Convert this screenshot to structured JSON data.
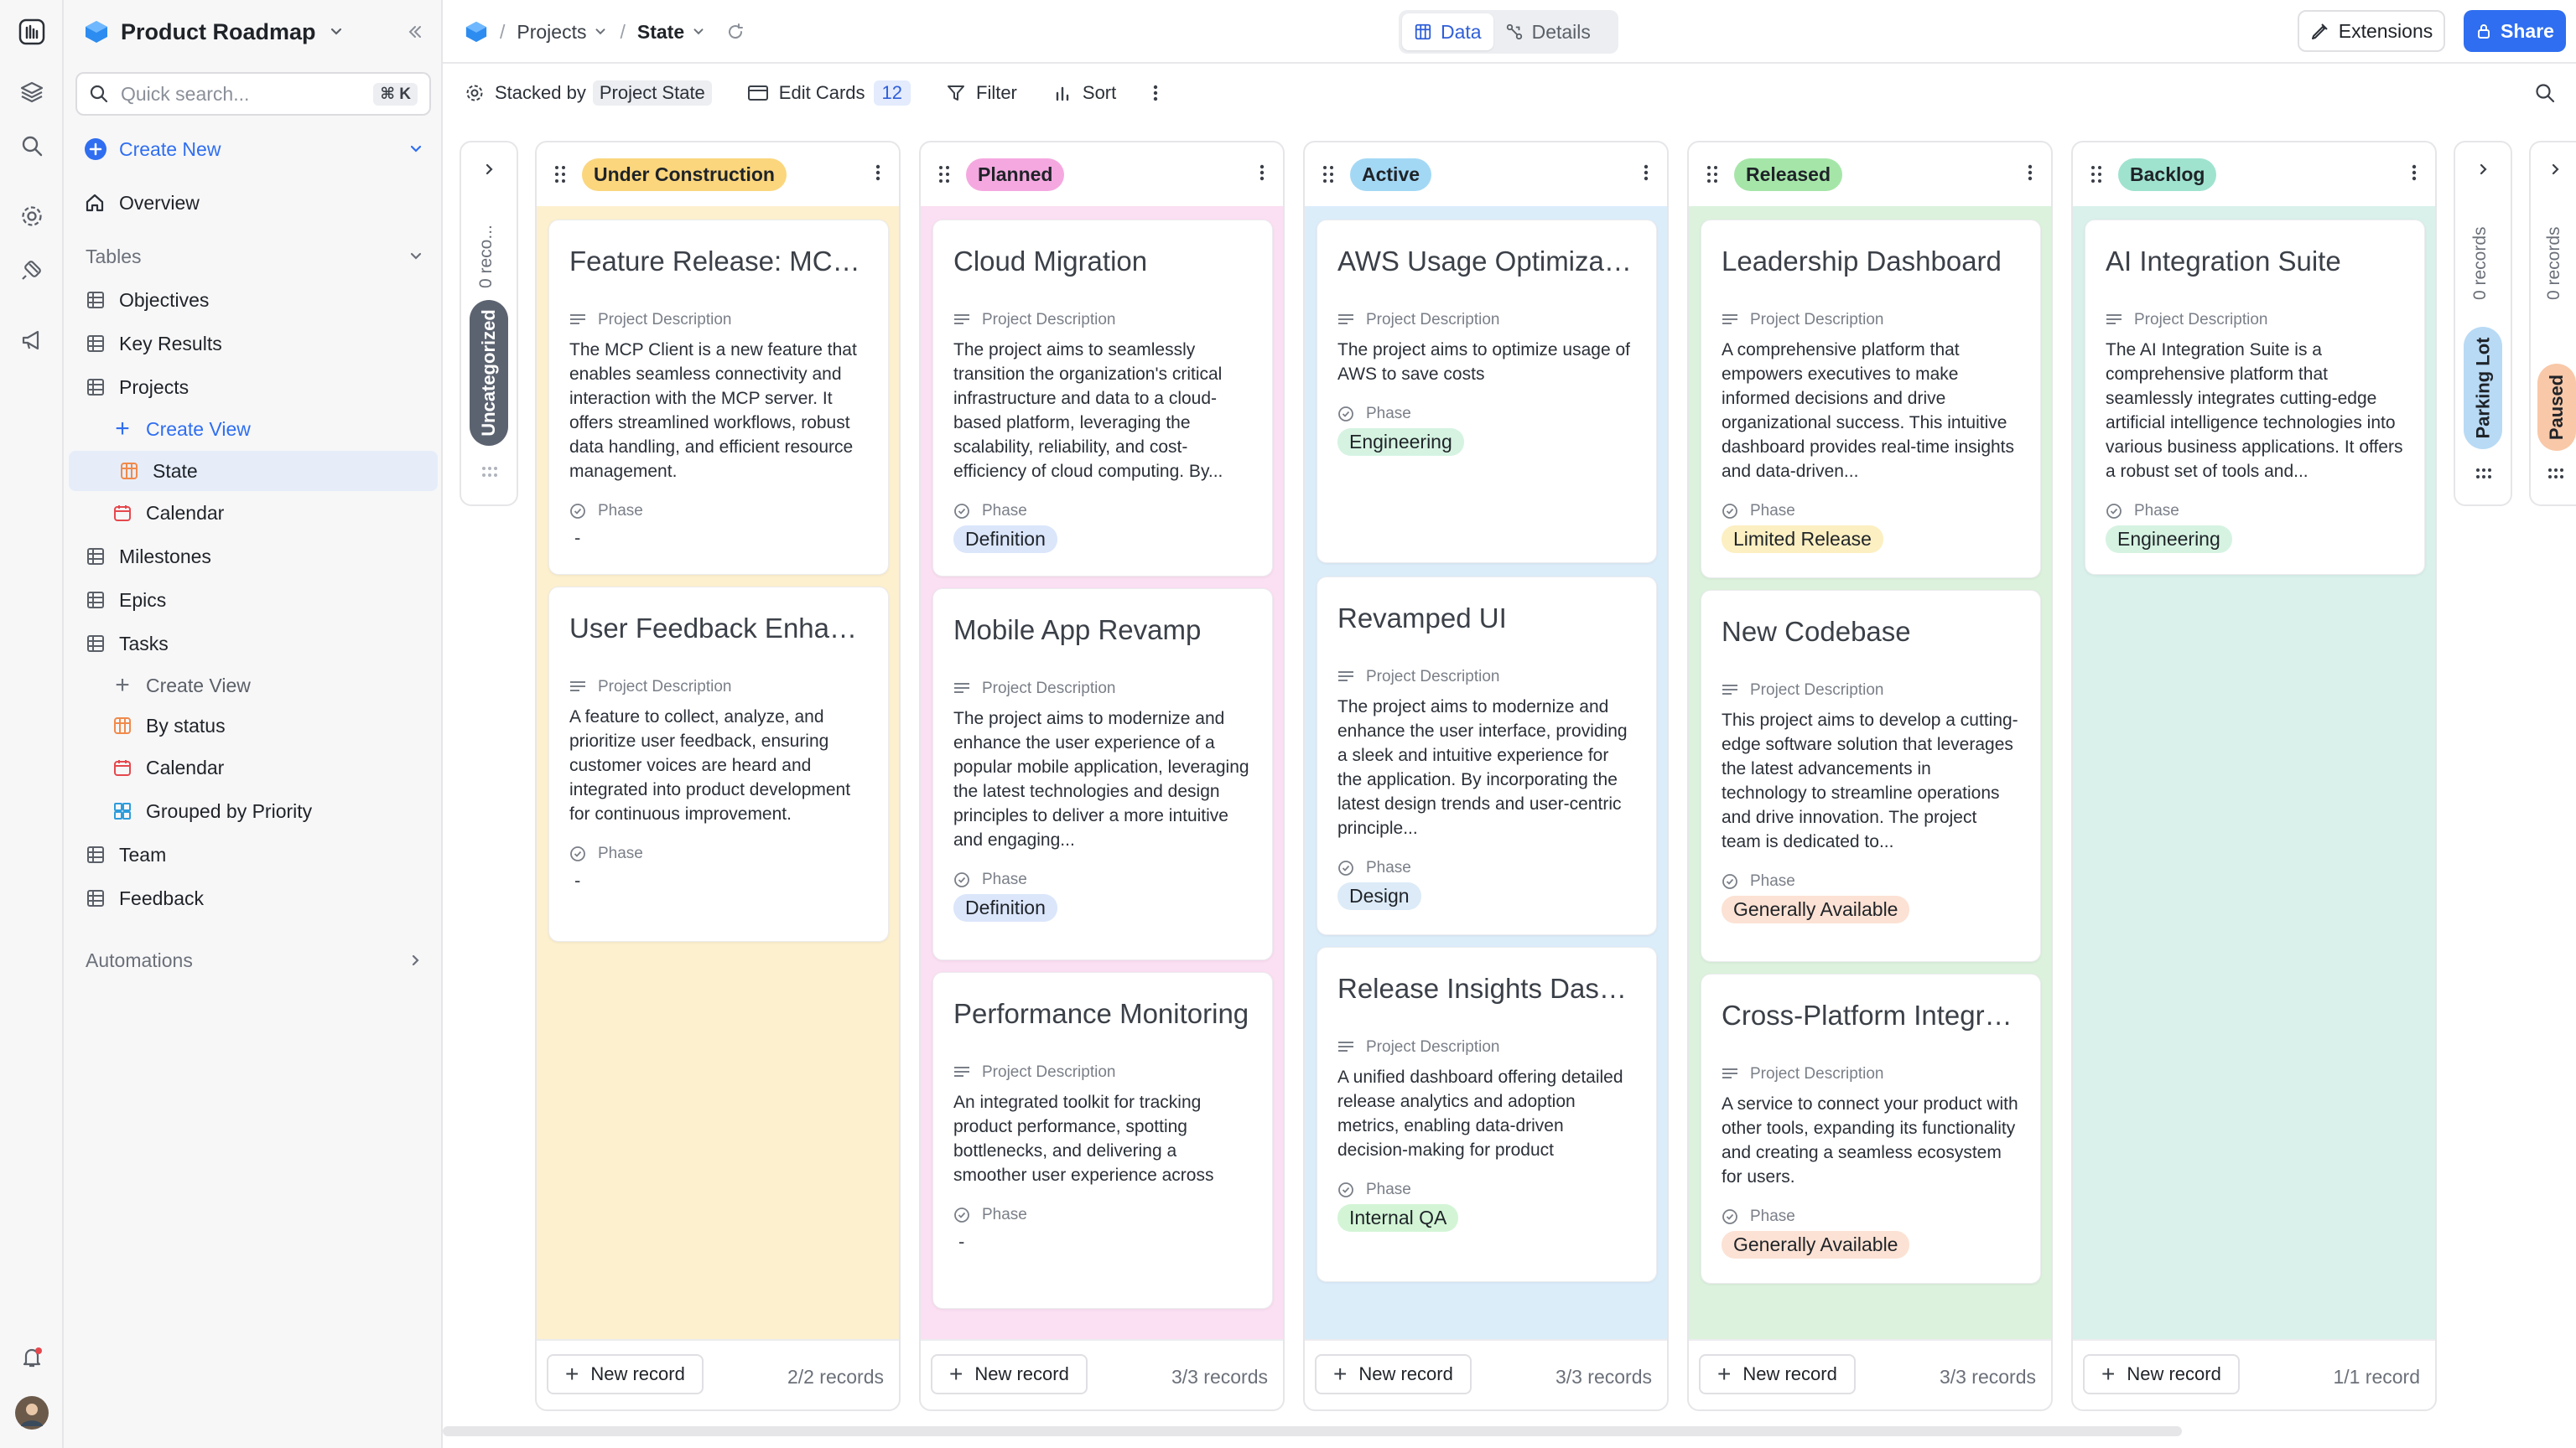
{
  "app": {
    "title": "Product Roadmap"
  },
  "search": {
    "placeholder": "Quick search...",
    "shortcut": "⌘ K"
  },
  "sidebar": {
    "create_new": "Create New",
    "overview": "Overview",
    "tables_label": "Tables",
    "items": {
      "objectives": "Objectives",
      "key_results": "Key Results",
      "projects": "Projects",
      "projects_create_view": "Create View",
      "projects_state": "State",
      "projects_calendar": "Calendar",
      "milestones": "Milestones",
      "epics": "Epics",
      "tasks": "Tasks",
      "tasks_create_view": "Create View",
      "tasks_by_status": "By status",
      "tasks_calendar": "Calendar",
      "tasks_grouped": "Grouped by Priority",
      "team": "Team",
      "feedback": "Feedback"
    },
    "automations": "Automations"
  },
  "breadcrumb": {
    "projects": "Projects",
    "view": "State"
  },
  "view_toggle": {
    "data": "Data",
    "details": "Details"
  },
  "header_actions": {
    "extensions": "Extensions",
    "share": "Share"
  },
  "toolbar": {
    "stacked_by": "Stacked by",
    "stacked_field": "Project State",
    "edit_cards": "Edit Cards",
    "edit_cards_count": "12",
    "filter": "Filter",
    "sort": "Sort"
  },
  "labels": {
    "project_description": "Project Description",
    "phase": "Phase",
    "new_record": "New record",
    "empty_phase": "-"
  },
  "collapsed_left": {
    "count": "0 reco...",
    "name": "Uncategorized"
  },
  "collapsed_right": [
    {
      "count": "0 records",
      "name": "Parking Lot"
    },
    {
      "count": "0 records",
      "name": "Paused"
    }
  ],
  "columns": [
    {
      "name": "Under Construction",
      "color": "#fbd67d",
      "bg": "#fdf0cf",
      "count": "2/2 records",
      "cards": [
        {
          "title": "Feature Release: MCP Client",
          "description": "The MCP Client is a new feature that enables seamless connectivity and interaction with the MCP server. It offers streamlined workflows, robust data handling, and efficient resource management.",
          "phase": ""
        },
        {
          "title": "User Feedback Enhancement",
          "description": "A feature to collect, analyze, and prioritize user feedback, ensuring customer voices are heard and integrated into product development for continuous improvement.",
          "phase": ""
        }
      ]
    },
    {
      "name": "Planned",
      "color": "#f5a8e0",
      "bg": "#fbdff2",
      "count": "3/3 records",
      "cards": [
        {
          "title": "Cloud Migration",
          "description": "The project aims to seamlessly transition the organization's critical infrastructure and data to a cloud-based platform, leveraging the scalability, reliability, and cost-efficiency of cloud computing. By...",
          "phase": "Definition",
          "phase_color": "#dbe6fb"
        },
        {
          "title": "Mobile App Revamp",
          "description": "The project aims to modernize and enhance the user experience of a popular mobile application, leveraging the latest technologies and design principles to deliver a more intuitive and engaging...",
          "phase": "Definition",
          "phase_color": "#dbe6fb"
        },
        {
          "title": "Performance Monitoring",
          "description": "An integrated toolkit for tracking product performance, spotting bottlenecks, and delivering a smoother user experience across platforms.",
          "phase": ""
        }
      ]
    },
    {
      "name": "Active",
      "color": "#a3d8f5",
      "bg": "#dcedfa",
      "count": "3/3 records",
      "cards": [
        {
          "title": "AWS Usage Optimization",
          "description": "The project aims to optimize usage of AWS to save costs",
          "phase": "Engineering",
          "phase_color": "#d6f3e2"
        },
        {
          "title": "Revamped UI",
          "description": "The project aims to modernize and enhance the user interface, providing a sleek and intuitive experience for the application. By incorporating the latest design trends and user-centric principle...",
          "phase": "Design",
          "phase_color": "#dcebf7"
        },
        {
          "title": "Release Insights Dashboard",
          "description": "A unified dashboard offering detailed release analytics and adoption metrics, enabling data-driven decision-making for product enhancements.",
          "phase": "Internal QA",
          "phase_color": "#d3f5d6"
        }
      ]
    },
    {
      "name": "Released",
      "color": "#a5e6a8",
      "bg": "#dcf2dd",
      "count": "3/3 records",
      "cards": [
        {
          "title": "Leadership Dashboard",
          "description": "A comprehensive platform that empowers executives to make informed decisions and drive organizational success. This intuitive dashboard provides real-time insights and data-driven...",
          "phase": "Limited Release",
          "phase_color": "#fcefc2"
        },
        {
          "title": "New Codebase",
          "description": "This project aims to develop a cutting-edge software solution that leverages the latest advancements in technology to streamline operations and drive innovation. The project team is dedicated to...",
          "phase": "Generally Available",
          "phase_color": "#fce2d4"
        },
        {
          "title": "Cross-Platform Integration",
          "description": "A service to connect your product with other tools, expanding its functionality and creating a seamless ecosystem for users.",
          "phase": "Generally Available",
          "phase_color": "#fce2d4"
        }
      ]
    },
    {
      "name": "Backlog",
      "color": "#9fe3cf",
      "bg": "#d9f1ea",
      "count": "1/1 record",
      "cards": [
        {
          "title": "AI Integration Suite",
          "description": "The AI Integration Suite is a comprehensive platform that seamlessly integrates cutting-edge artificial intelligence technologies into various business applications. It offers a robust set of tools and...",
          "phase": "Engineering",
          "phase_color": "#d6f3e2"
        }
      ]
    }
  ]
}
